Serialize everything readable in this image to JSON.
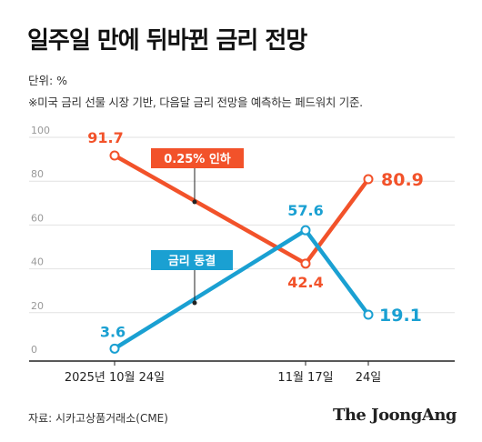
{
  "title": "일주일 만에 뒤바뀐 금리 전망",
  "unit_note": "단위: %",
  "description_note": "※미국 금리 선물 시장 기반, 다음달 금리 전망을 예측하는 페드워치 기준.",
  "source": "자료: 시카고상품거래소(CME)",
  "brand": "The JoongAng",
  "colors": {
    "cut": "#f2522a",
    "hold": "#1aa0d2",
    "axis": "#222222",
    "grid": "#e2e2e2"
  },
  "chart_data": {
    "type": "line",
    "x": [
      "2025년 10월 24일",
      "11월 17일",
      "24일"
    ],
    "ylim": [
      0,
      100
    ],
    "yticks": [
      "0",
      "20",
      "40",
      "60",
      "80",
      "100"
    ],
    "grid": true,
    "series": [
      {
        "name": "0.25% 인하",
        "color": "#f2522a",
        "values": [
          91.7,
          42.4,
          80.9
        ],
        "labels": [
          "91.7",
          "42.4",
          "80.9"
        ]
      },
      {
        "name": "금리 동결",
        "color": "#1aa0d2",
        "values": [
          3.6,
          57.6,
          19.1
        ],
        "labels": [
          "3.6",
          "57.6",
          "19.1"
        ]
      }
    ]
  }
}
